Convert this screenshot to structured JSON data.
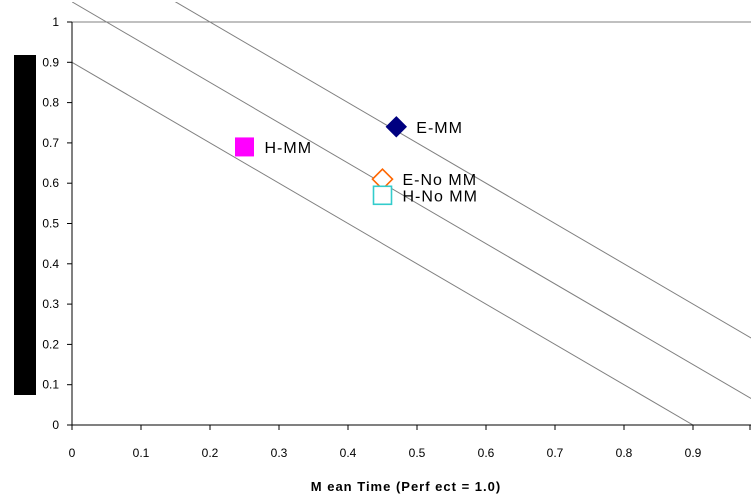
{
  "chart_data": {
    "type": "scatter",
    "title": "",
    "xlabel": "M ean Time (Perf ect = 1.0)",
    "ylabel": "",
    "xlim": [
      0,
      1
    ],
    "ylim": [
      0,
      1
    ],
    "x_ticks": [
      "0",
      "0.1",
      "0.2",
      "0.3",
      "0.4",
      "0.5",
      "0.6",
      "0.7",
      "0.8",
      "0.9"
    ],
    "y_ticks": [
      "0",
      "0.1",
      "0.2",
      "0.3",
      "0.4",
      "0.5",
      "0.6",
      "0.7",
      "0.8",
      "0.9",
      "1"
    ],
    "gridlines": [
      {
        "y": 1
      }
    ],
    "reference_lines": [
      {
        "x0": 0,
        "y0": 0.9,
        "x1": 0.9,
        "y1": 0
      },
      {
        "x0": 0,
        "y0": 1.05,
        "x1": 1.0,
        "y1": 0.05
      },
      {
        "x0": 0,
        "y0": 1.2,
        "x1": 1.0,
        "y1": 0.2
      }
    ],
    "points": [
      {
        "label": "E-MM",
        "x": 0.47,
        "y": 0.74,
        "marker": "diamond-filled",
        "color": "#000080"
      },
      {
        "label": "H-MM",
        "x": 0.25,
        "y": 0.69,
        "marker": "square-filled",
        "color": "#ff00ff"
      },
      {
        "label": "E-No MM",
        "x": 0.45,
        "y": 0.61,
        "marker": "diamond-open",
        "color": "#ff6600"
      },
      {
        "label": "H-No MM",
        "x": 0.45,
        "y": 0.57,
        "marker": "square-open",
        "color": "#33cccc"
      }
    ],
    "grid": false,
    "legend": "none"
  }
}
